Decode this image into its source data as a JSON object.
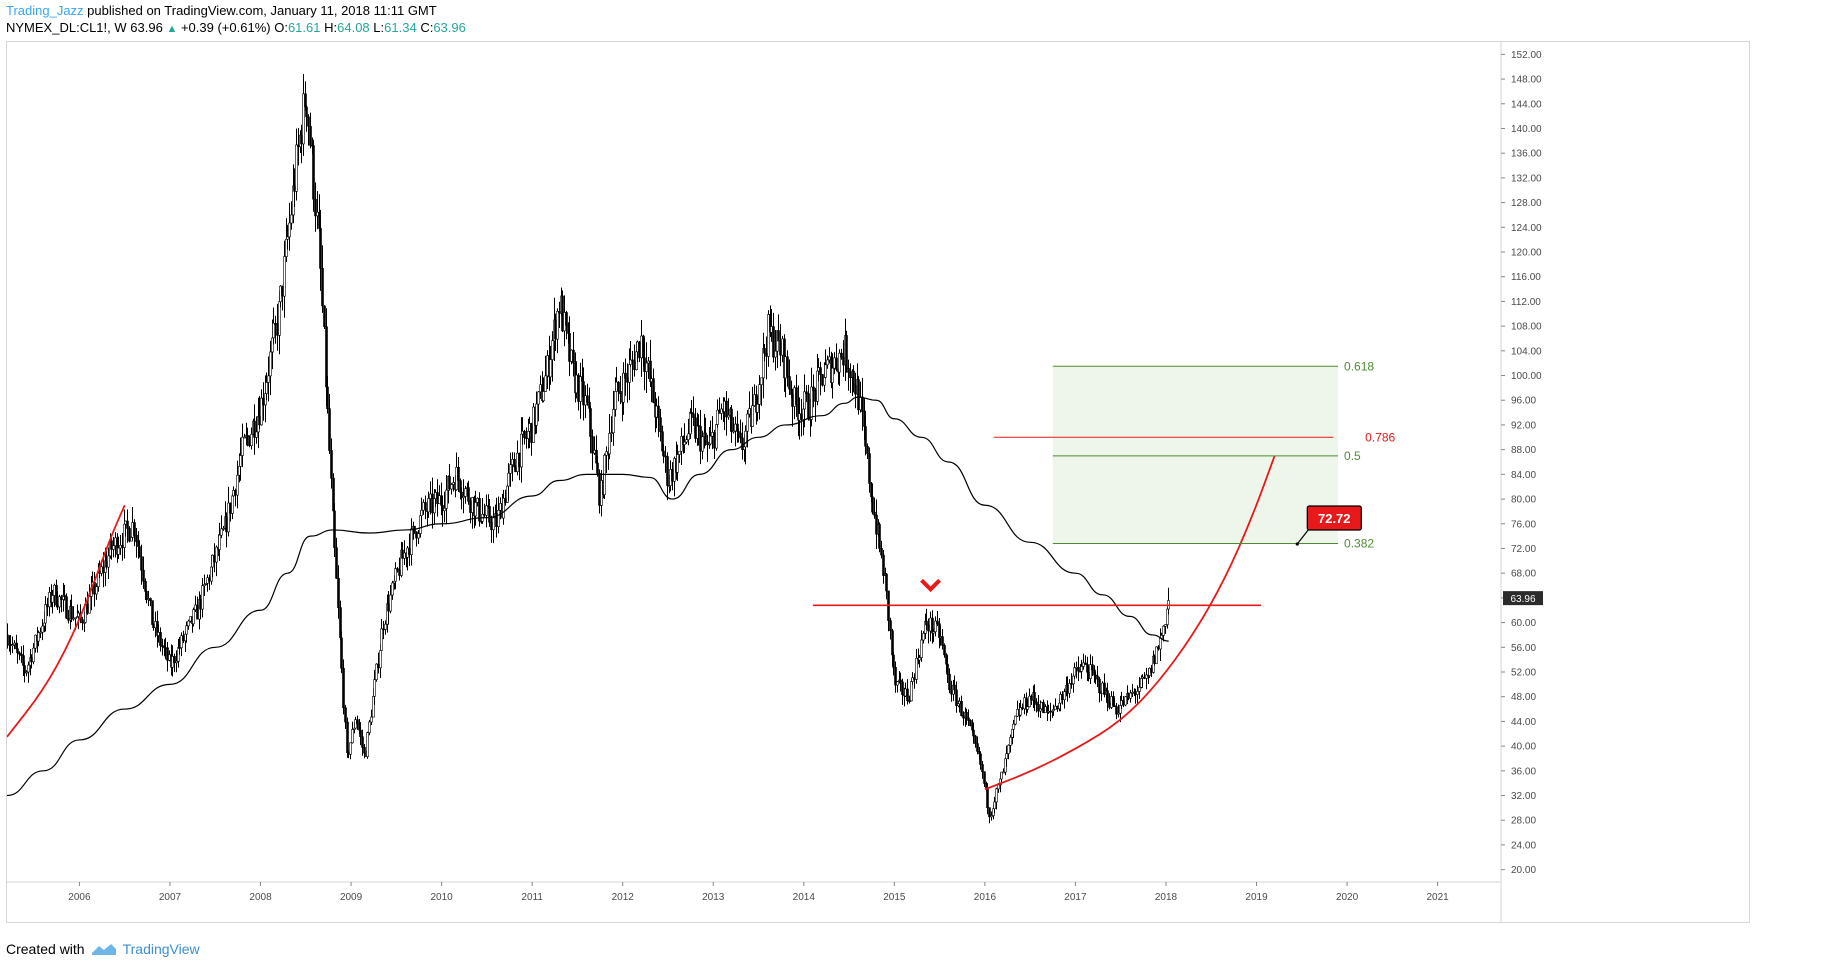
{
  "header": {
    "author": "Trading_Jazz",
    "published": " published on TradingView.com, January 11, 2018 11:11 GMT"
  },
  "symbol_bar": {
    "symbol": "NYMEX_DL:CL1!, W",
    "last": "63.96",
    "change": "+0.39 (+0.61%)",
    "open_label": "O:",
    "open": "61.61",
    "high_label": "H:",
    "high": "64.08",
    "low_label": "L:",
    "low": "61.34",
    "close_label": "C:",
    "close": "63.96"
  },
  "footer": {
    "created_with": "Created with",
    "brand": "TradingView"
  },
  "colors": {
    "candle": "#000000",
    "ma": "#000000",
    "red": "#e8191a",
    "fib_green": "#4e8a35",
    "fib_fill": "#eef5ea",
    "price_badge_bg": "#2b2b2b",
    "axis_text": "#4a4a4a"
  },
  "chart_data": {
    "type": "candlestick",
    "title": "",
    "xlabel": "",
    "ylabel": "",
    "ylim": [
      18,
      154
    ],
    "xlim": [
      2005.2,
      2021.7
    ],
    "grid": false,
    "y_ticks": [
      20,
      24,
      28,
      32,
      36,
      40,
      44,
      48,
      52,
      56,
      60,
      64,
      68,
      72,
      76,
      80,
      84,
      88,
      92,
      96,
      100,
      104,
      108,
      112,
      116,
      120,
      124,
      128,
      132,
      136,
      140,
      144,
      148,
      152
    ],
    "x_ticks": [
      {
        "label": "2006",
        "x": 2006.0
      },
      {
        "label": "2007",
        "x": 2007.0
      },
      {
        "label": "2008",
        "x": 2008.0
      },
      {
        "label": "2009",
        "x": 2009.0
      },
      {
        "label": "2010",
        "x": 2010.0
      },
      {
        "label": "2011",
        "x": 2011.0
      },
      {
        "label": "2012",
        "x": 2012.0
      },
      {
        "label": "2013",
        "x": 2013.0
      },
      {
        "label": "2014",
        "x": 2014.0
      },
      {
        "label": "2015",
        "x": 2015.0
      },
      {
        "label": "2016",
        "x": 2016.0
      },
      {
        "label": "2017",
        "x": 2017.0
      },
      {
        "label": "2018",
        "x": 2018.0
      },
      {
        "label": "2019",
        "x": 2019.0
      },
      {
        "label": "2020",
        "x": 2020.0
      },
      {
        "label": "2021",
        "x": 2021.0
      }
    ],
    "price_path": [
      [
        2005.2,
        58
      ],
      [
        2005.4,
        52
      ],
      [
        2005.7,
        65
      ],
      [
        2006.0,
        60
      ],
      [
        2006.35,
        72
      ],
      [
        2006.6,
        76
      ],
      [
        2006.8,
        60
      ],
      [
        2007.0,
        53
      ],
      [
        2007.3,
        62
      ],
      [
        2007.6,
        75
      ],
      [
        2007.8,
        88
      ],
      [
        2008.0,
        95
      ],
      [
        2008.2,
        110
      ],
      [
        2008.4,
        135
      ],
      [
        2008.5,
        146
      ],
      [
        2008.65,
        120
      ],
      [
        2008.8,
        75
      ],
      [
        2008.95,
        38
      ],
      [
        2009.05,
        45
      ],
      [
        2009.15,
        38
      ],
      [
        2009.35,
        60
      ],
      [
        2009.55,
        70
      ],
      [
        2009.8,
        78
      ],
      [
        2010.0,
        80
      ],
      [
        2010.15,
        84
      ],
      [
        2010.4,
        78
      ],
      [
        2010.6,
        76
      ],
      [
        2010.8,
        86
      ],
      [
        2011.0,
        92
      ],
      [
        2011.15,
        100
      ],
      [
        2011.3,
        112
      ],
      [
        2011.45,
        100
      ],
      [
        2011.6,
        95
      ],
      [
        2011.75,
        80
      ],
      [
        2011.9,
        96
      ],
      [
        2012.05,
        100
      ],
      [
        2012.2,
        106
      ],
      [
        2012.35,
        95
      ],
      [
        2012.5,
        83
      ],
      [
        2012.75,
        92
      ],
      [
        2012.95,
        88
      ],
      [
        2013.1,
        95
      ],
      [
        2013.3,
        88
      ],
      [
        2013.45,
        95
      ],
      [
        2013.6,
        107
      ],
      [
        2013.75,
        104
      ],
      [
        2013.9,
        95
      ],
      [
        2014.05,
        95
      ],
      [
        2014.2,
        100
      ],
      [
        2014.45,
        104
      ],
      [
        2014.6,
        97
      ],
      [
        2014.75,
        80
      ],
      [
        2014.9,
        66
      ],
      [
        2015.0,
        50
      ],
      [
        2015.15,
        48
      ],
      [
        2015.35,
        60
      ],
      [
        2015.5,
        58
      ],
      [
        2015.6,
        50
      ],
      [
        2015.8,
        44
      ],
      [
        2015.95,
        37
      ],
      [
        2016.05,
        29
      ],
      [
        2016.2,
        36
      ],
      [
        2016.35,
        45
      ],
      [
        2016.5,
        48
      ],
      [
        2016.7,
        45
      ],
      [
        2016.85,
        48
      ],
      [
        2016.95,
        51
      ],
      [
        2017.1,
        53
      ],
      [
        2017.3,
        49
      ],
      [
        2017.45,
        46
      ],
      [
        2017.6,
        48
      ],
      [
        2017.8,
        51
      ],
      [
        2017.95,
        58
      ],
      [
        2018.03,
        63.96
      ]
    ],
    "moving_average": [
      [
        2005.2,
        32
      ],
      [
        2005.6,
        36
      ],
      [
        2006.0,
        41
      ],
      [
        2006.5,
        46
      ],
      [
        2007.0,
        50
      ],
      [
        2007.5,
        56
      ],
      [
        2008.0,
        62
      ],
      [
        2008.3,
        68
      ],
      [
        2008.55,
        74
      ],
      [
        2008.8,
        75
      ],
      [
        2009.2,
        74.5
      ],
      [
        2009.6,
        75
      ],
      [
        2010.0,
        76
      ],
      [
        2010.5,
        77
      ],
      [
        2011.0,
        80.5
      ],
      [
        2011.3,
        83
      ],
      [
        2011.6,
        84
      ],
      [
        2012.0,
        84
      ],
      [
        2012.3,
        83.5
      ],
      [
        2012.55,
        80
      ],
      [
        2012.85,
        84
      ],
      [
        2013.2,
        88
      ],
      [
        2013.5,
        90
      ],
      [
        2013.8,
        92
      ],
      [
        2014.2,
        93.5
      ],
      [
        2014.45,
        95.5
      ],
      [
        2014.6,
        96.5
      ],
      [
        2014.8,
        96
      ],
      [
        2015.0,
        93
      ],
      [
        2015.3,
        90
      ],
      [
        2015.6,
        86
      ],
      [
        2016.0,
        79
      ],
      [
        2016.5,
        73
      ],
      [
        2017.0,
        68
      ],
      [
        2017.3,
        64.5
      ],
      [
        2017.6,
        61
      ],
      [
        2017.85,
        58
      ],
      [
        2018.03,
        57
      ]
    ],
    "horizontal_resistance": {
      "x_start": 2014.1,
      "x_end": 2019.05,
      "y": 62.8
    },
    "resistance_marker_x": 2015.4,
    "fib_levels": [
      {
        "label": "0.618",
        "value": 101.5,
        "color": "#4e8a35"
      },
      {
        "label": "0.786",
        "value": 90.0,
        "color": "#e8191a"
      },
      {
        "label": "0.5",
        "value": 87.0,
        "color": "#4e8a35"
      },
      {
        "label": "0.382",
        "value": 72.8,
        "color": "#4e8a35"
      }
    ],
    "fib_box": {
      "x_start": 2016.75,
      "x_end": 2019.9,
      "y_top": 101.5,
      "y_bottom": 72.8
    },
    "fib_786_x_start": 2016.1,
    "curve_left": [
      [
        2005.2,
        41.5
      ],
      [
        2005.6,
        49
      ],
      [
        2005.9,
        57
      ],
      [
        2006.15,
        66
      ],
      [
        2006.35,
        74
      ],
      [
        2006.5,
        79
      ]
    ],
    "curve_right": [
      [
        2016.0,
        33
      ],
      [
        2016.5,
        35.8
      ],
      [
        2017.0,
        39.5
      ],
      [
        2017.5,
        44
      ],
      [
        2017.9,
        50
      ],
      [
        2018.3,
        58
      ],
      [
        2018.65,
        67
      ],
      [
        2018.95,
        77
      ],
      [
        2019.2,
        87
      ]
    ],
    "price_tag": {
      "label": "72.72",
      "x": 2019.45,
      "y": 72.72
    },
    "last_price_label": "63.96"
  }
}
